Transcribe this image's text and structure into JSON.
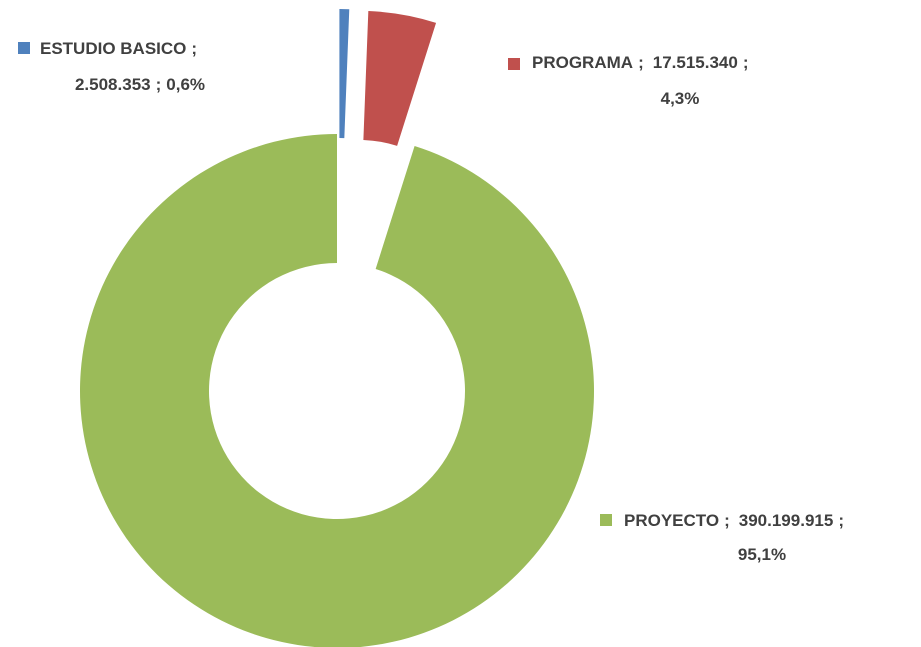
{
  "chart_data": {
    "type": "donut",
    "categories": [
      "ESTUDIO BASICO",
      "PROGRAMA",
      "PROYECTO"
    ],
    "values": [
      2508353,
      17515340,
      390199915
    ],
    "value_labels": [
      "2.508.353",
      "17.515.340",
      "390.199.915"
    ],
    "percent_labels": [
      "0,6%",
      "4,3%",
      "95,1%"
    ],
    "label_separator": ";",
    "colors": [
      "#4f81bd",
      "#c0504d",
      "#9bbb59"
    ],
    "exploded": [
      true,
      true,
      false
    ]
  }
}
